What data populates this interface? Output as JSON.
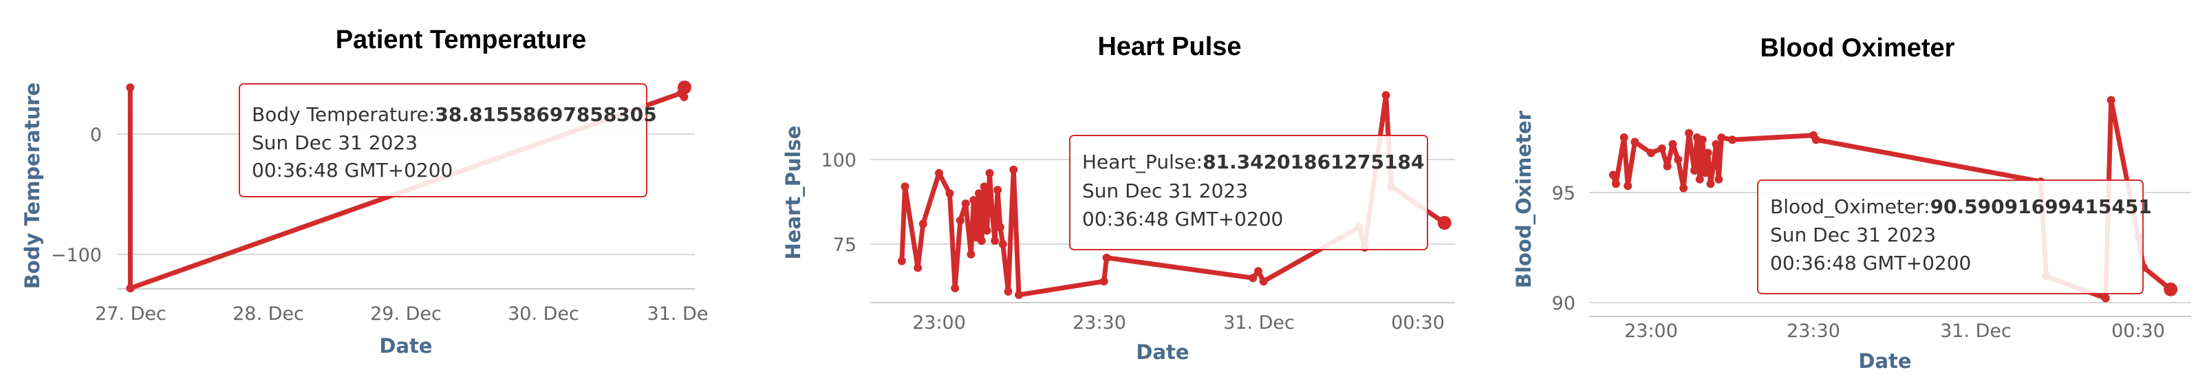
{
  "colors": {
    "series": "#d22b2b",
    "grid": "#d8d8d8",
    "axis_title": "#4a6b8c",
    "tooltip_border": "#d22b2b"
  },
  "chart_data": [
    {
      "type": "line",
      "title": "Patient Temperature",
      "xlabel": "Date",
      "ylabel": "Body Temperature",
      "x_ticks": [
        "27. Dec",
        "28. Dec",
        "29. Dec",
        "30. Dec",
        "31. De"
      ],
      "y_ticks": [
        "0",
        "−100"
      ],
      "ylim": [
        -130,
        50
      ],
      "grid": "horizontal",
      "series": [
        {
          "x": [
            "2023-12-26 23:55",
            "2023-12-26 23:56",
            "2023-12-26 23:57",
            "2023-12-30 23:59",
            "2023-12-31 00:30",
            "2023-12-31 00:32",
            "2023-12-31 00:34",
            "2023-12-31 00:36"
          ],
          "y": [
            38.7,
            -128.0,
            -128.0,
            34.0,
            38.0,
            30.8,
            39.3,
            38.8
          ]
        }
      ],
      "tooltip": {
        "label": "Body Temperature:",
        "value": "38.81558697858305",
        "date": "Sun Dec 31 2023",
        "time": "00:36:48 GMT+0200"
      }
    },
    {
      "type": "line",
      "title": "Heart Pulse",
      "xlabel": "Date",
      "ylabel": "Heart_Pulse",
      "x_ticks": [
        "23:00",
        "23:30",
        "31. Dec",
        "00:30"
      ],
      "y_ticks": [
        "100",
        "75"
      ],
      "ylim": [
        58,
        110
      ],
      "grid": "horizontal",
      "series": [
        {
          "x": [
            "22:53",
            "22:53.6",
            "22:56",
            "22:57",
            "23:00",
            "23:02",
            "23:03",
            "23:04",
            "23:05",
            "23:06",
            "23:06.5",
            "23:07",
            "23:07.5",
            "23:08",
            "23:08.5",
            "23:09",
            "23:09.5",
            "23:10",
            "23:10.5",
            "23:11",
            "23:11.5",
            "23:12",
            "23:13",
            "23:14",
            "23:15",
            "23:31",
            "23:31.5",
            "23:59",
            "00:00",
            "00:01",
            "00:19",
            "00:20",
            "00:24",
            "00:25",
            "00:35"
          ],
          "y": [
            70,
            92,
            68,
            81,
            96,
            90,
            62,
            82,
            87,
            72,
            88,
            77,
            90,
            76,
            92,
            79,
            96,
            84,
            76,
            91,
            80,
            75,
            61,
            97,
            60,
            64,
            71,
            65,
            67,
            64,
            80,
            74,
            119,
            92,
            81.3
          ]
        }
      ],
      "tooltip": {
        "label": "Heart_Pulse:",
        "value": "81.34201861275184",
        "date": "Sun Dec 31 2023",
        "time": "00:36:48 GMT+0200"
      }
    },
    {
      "type": "line",
      "title": "Blood Oximeter",
      "xlabel": "Date",
      "ylabel": "Blood_Oximeter",
      "x_ticks": [
        "23:00",
        "23:30",
        "31. Dec",
        "00:30"
      ],
      "y_ticks": [
        "95",
        "90"
      ],
      "ylim": [
        89,
        99.5
      ],
      "grid": "horizontal",
      "series": [
        {
          "x": [
            "22:53",
            "22:53.5",
            "22:55",
            "22:55.7",
            "22:57",
            "23:00",
            "23:02",
            "23:03",
            "23:04",
            "23:05",
            "23:06",
            "23:07",
            "23:08",
            "23:08.5",
            "23:09",
            "23:09.5",
            "23:10",
            "23:10.5",
            "23:11",
            "23:11.5",
            "23:12",
            "23:12.5",
            "23:13",
            "23:15",
            "23:30",
            "23:30.5",
            "00:12",
            "00:13",
            "00:24",
            "00:25",
            "00:30",
            "00:31",
            "00:36"
          ],
          "y": [
            95.8,
            95.4,
            97.5,
            95.3,
            97.3,
            96.8,
            97.0,
            96.2,
            97.2,
            96.5,
            95.2,
            97.7,
            96.0,
            97.5,
            95.6,
            97.4,
            95.9,
            96.8,
            95.4,
            96.2,
            97.2,
            95.6,
            97.5,
            97.4,
            97.6,
            97.4,
            95.5,
            91.2,
            90.2,
            99.2,
            93.0,
            91.6,
            90.6
          ]
        }
      ],
      "tooltip": {
        "label": "Blood_Oximeter:",
        "value": "90.59091699415451",
        "date": "Sun Dec 31 2023",
        "time": "00:36:48 GMT+0200"
      }
    }
  ]
}
